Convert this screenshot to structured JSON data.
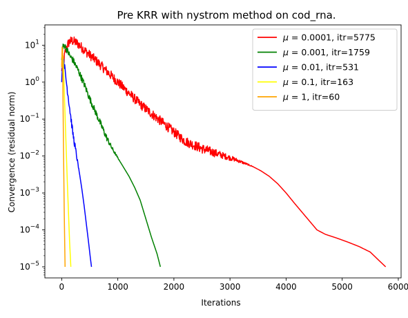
{
  "chart_data": {
    "type": "line",
    "title": "Pre KRR with nystrom method on cod_rna.",
    "xlabel": "Iterations",
    "ylabel": "Convergence (residual norm)",
    "xlim": [
      -300,
      6050
    ],
    "ylim_exponents": [
      -5.3,
      1.55
    ],
    "y_scale": "log",
    "x_ticks": [
      {
        "value": 0,
        "label": "0"
      },
      {
        "value": 1000,
        "label": "1000"
      },
      {
        "value": 2000,
        "label": "2000"
      },
      {
        "value": 3000,
        "label": "3000"
      },
      {
        "value": 4000,
        "label": "4000"
      },
      {
        "value": 5000,
        "label": "5000"
      },
      {
        "value": 6000,
        "label": "6000"
      }
    ],
    "y_ticks": [
      {
        "value": 1,
        "base": "10",
        "exp": "1"
      },
      {
        "value": 0,
        "base": "10",
        "exp": "0"
      },
      {
        "value": -1,
        "base": "10",
        "exp": "−1"
      },
      {
        "value": -2,
        "base": "10",
        "exp": "−2"
      },
      {
        "value": -3,
        "base": "10",
        "exp": "−3"
      },
      {
        "value": -4,
        "base": "10",
        "exp": "−4"
      },
      {
        "value": -5,
        "base": "10",
        "exp": "−5"
      }
    ],
    "grid": false,
    "legend_position": "top-right",
    "series": [
      {
        "name": "μ = 0.0001, itr=5775",
        "mu": "0.0001",
        "itr": "5775",
        "color": "#ff0000",
        "noise": 0.13,
        "x": [
          0,
          30,
          60,
          100,
          140,
          180,
          220,
          280,
          350,
          450,
          600,
          800,
          1000,
          1200,
          1400,
          1600,
          1800,
          2000,
          2200,
          2500,
          2800,
          3100,
          3400,
          3550,
          3700,
          3850,
          4000,
          4150,
          4300,
          4450,
          4550,
          4700,
          4900,
          5100,
          5300,
          5500,
          5650,
          5775
        ],
        "y": [
          0.3,
          0.5,
          0.8,
          1.0,
          1.1,
          1.12,
          1.1,
          1.05,
          0.95,
          0.8,
          0.6,
          0.3,
          0.0,
          -0.3,
          -0.6,
          -0.85,
          -1.1,
          -1.35,
          -1.6,
          -1.8,
          -1.95,
          -2.1,
          -2.28,
          -2.4,
          -2.55,
          -2.75,
          -3.0,
          -3.28,
          -3.55,
          -3.82,
          -4.0,
          -4.12,
          -4.22,
          -4.33,
          -4.45,
          -4.6,
          -4.82,
          -5.0
        ]
      },
      {
        "name": "μ = 0.001, itr=1759",
        "mu": "0.001",
        "itr": "1759",
        "color": "#008000",
        "noise": 0.09,
        "x": [
          0,
          20,
          50,
          100,
          150,
          200,
          300,
          400,
          500,
          600,
          700,
          800,
          900,
          1000,
          1100,
          1200,
          1300,
          1400,
          1500,
          1600,
          1700,
          1759
        ],
        "y": [
          0.6,
          0.95,
          1.0,
          0.85,
          0.7,
          0.6,
          0.3,
          -0.05,
          -0.45,
          -0.8,
          -1.15,
          -1.5,
          -1.8,
          -2.05,
          -2.3,
          -2.55,
          -2.85,
          -3.2,
          -3.7,
          -4.2,
          -4.65,
          -5.0
        ]
      },
      {
        "name": "μ = 0.01, itr=531",
        "mu": "0.01",
        "itr": "531",
        "color": "#0000ff",
        "noise": 0.1,
        "x": [
          0,
          15,
          30,
          60,
          100,
          150,
          200,
          260,
          320,
          360,
          400,
          440,
          480,
          510,
          531
        ],
        "y": [
          0.0,
          0.5,
          0.7,
          0.3,
          -0.2,
          -0.8,
          -1.4,
          -1.95,
          -2.5,
          -2.9,
          -3.35,
          -3.85,
          -4.35,
          -4.75,
          -5.0
        ]
      },
      {
        "name": "μ = 0.1, itr=163",
        "mu": "0.1",
        "itr": "163",
        "color": "#ffff00",
        "noise": 0,
        "x": [
          0,
          10,
          25,
          60,
          100,
          140,
          163
        ],
        "y": [
          0.45,
          0.75,
          0.7,
          -0.9,
          -2.7,
          -4.3,
          -5.0
        ]
      },
      {
        "name": "μ = 1, itr=60",
        "mu": "1",
        "itr": "60",
        "color": "#ffa500",
        "noise": 0,
        "x": [
          0,
          8,
          15,
          30,
          45,
          60
        ],
        "y": [
          0.4,
          0.95,
          0.9,
          -1.5,
          -3.5,
          -5.0
        ]
      }
    ]
  }
}
